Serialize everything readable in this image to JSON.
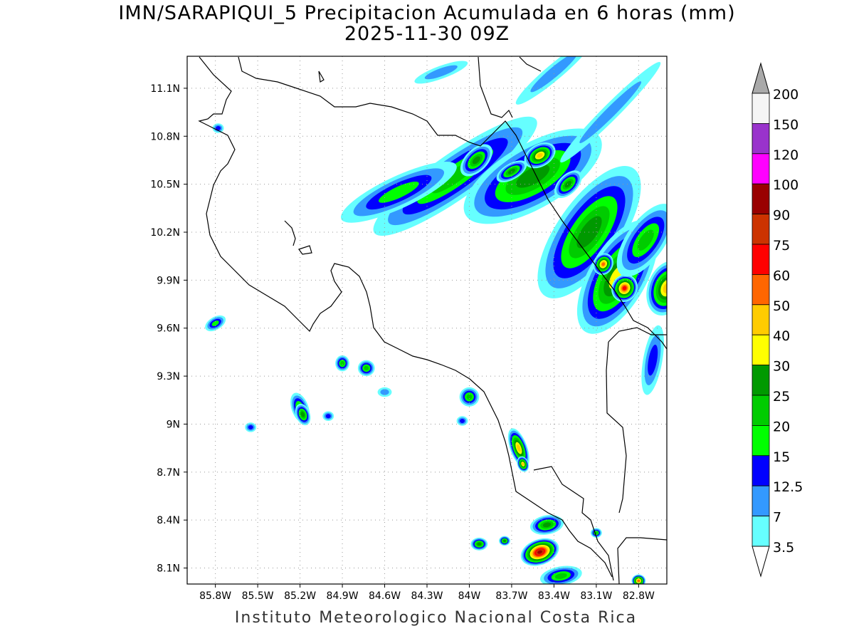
{
  "title": "IMN/SARAPIQUI_5 Precipitacion Acumulada en 6 horas (mm)",
  "subtitle": "2025-11-30 09Z",
  "credit": "Instituto Meteorologico Nacional Costa Rica",
  "map": {
    "lon_range": [
      -86.0,
      -82.6
    ],
    "lat_range": [
      8.0,
      11.3
    ],
    "lon_ticks": [
      {
        "value": -85.8,
        "label": "85.8W"
      },
      {
        "value": -85.5,
        "label": "85.5W"
      },
      {
        "value": -85.2,
        "label": "85.2W"
      },
      {
        "value": -84.9,
        "label": "84.9W"
      },
      {
        "value": -84.6,
        "label": "84.6W"
      },
      {
        "value": -84.3,
        "label": "84.3W"
      },
      {
        "value": -84.0,
        "label": "84W"
      },
      {
        "value": -83.7,
        "label": "83.7W"
      },
      {
        "value": -83.4,
        "label": "83.4W"
      },
      {
        "value": -83.1,
        "label": "83.1W"
      },
      {
        "value": -82.8,
        "label": "82.8W"
      }
    ],
    "lat_ticks": [
      {
        "value": 11.1,
        "label": "11.1N"
      },
      {
        "value": 10.8,
        "label": "10.8N"
      },
      {
        "value": 10.5,
        "label": "10.5N"
      },
      {
        "value": 10.2,
        "label": "10.2N"
      },
      {
        "value": 9.9,
        "label": "9.9N"
      },
      {
        "value": 9.6,
        "label": "9.6N"
      },
      {
        "value": 9.3,
        "label": "9.3N"
      },
      {
        "value": 9.0,
        "label": "9N"
      },
      {
        "value": 8.7,
        "label": "8.7N"
      },
      {
        "value": 8.4,
        "label": "8.4N"
      },
      {
        "value": 8.1,
        "label": "8.1N"
      }
    ],
    "grid": "dotted"
  },
  "colorbar": {
    "levels": [
      {
        "label": "200",
        "color": "#a9a9a9"
      },
      {
        "label": "150",
        "color": "#f5f5f5"
      },
      {
        "label": "120",
        "color": "#9933cc"
      },
      {
        "label": "100",
        "color": "#ff00ff"
      },
      {
        "label": "90",
        "color": "#990000"
      },
      {
        "label": "75",
        "color": "#cc3300"
      },
      {
        "label": "60",
        "color": "#ff0000"
      },
      {
        "label": "50",
        "color": "#ff6600"
      },
      {
        "label": "40",
        "color": "#ffcc00"
      },
      {
        "label": "30",
        "color": "#ffff00"
      },
      {
        "label": "25",
        "color": "#009900"
      },
      {
        "label": "20",
        "color": "#00cc00"
      },
      {
        "label": "15",
        "color": "#00ff00"
      },
      {
        "label": "12.5",
        "color": "#0000ff"
      },
      {
        "label": "7",
        "color": "#3399ff"
      },
      {
        "label": "3.5",
        "color": "#66ffff"
      }
    ],
    "top_arrow_color": "#a9a9a9",
    "bottom_arrow_color": "#ffffff"
  },
  "precip_cells": [
    {
      "lon": -84.1,
      "lat": 10.55,
      "w": 0.7,
      "h": 0.14,
      "rot": -35,
      "max": 4
    },
    {
      "lon": -84.5,
      "lat": 10.45,
      "w": 0.45,
      "h": 0.1,
      "rot": -25,
      "max": 3
    },
    {
      "lon": -83.55,
      "lat": 10.55,
      "w": 0.55,
      "h": 0.2,
      "rot": -30,
      "max": 5
    },
    {
      "lon": -83.5,
      "lat": 10.68,
      "w": 0.12,
      "h": 0.07,
      "rot": -30,
      "max": 7
    },
    {
      "lon": -83.95,
      "lat": 10.65,
      "w": 0.14,
      "h": 0.07,
      "rot": -45,
      "max": 5
    },
    {
      "lon": -83.7,
      "lat": 10.58,
      "w": 0.12,
      "h": 0.05,
      "rot": -30,
      "max": 5
    },
    {
      "lon": -83.3,
      "lat": 10.5,
      "w": 0.12,
      "h": 0.06,
      "rot": -45,
      "max": 5
    },
    {
      "lon": -83.15,
      "lat": 10.2,
      "w": 0.55,
      "h": 0.2,
      "rot": -55,
      "max": 5
    },
    {
      "lon": -82.95,
      "lat": 9.92,
      "w": 0.45,
      "h": 0.18,
      "rot": -60,
      "max": 6
    },
    {
      "lon": -82.9,
      "lat": 9.85,
      "w": 0.1,
      "h": 0.08,
      "rot": -60,
      "max": 9
    },
    {
      "lon": -83.05,
      "lat": 10.0,
      "w": 0.08,
      "h": 0.06,
      "rot": -60,
      "max": 8
    },
    {
      "lon": -82.75,
      "lat": 10.15,
      "w": 0.3,
      "h": 0.12,
      "rot": -55,
      "max": 4
    },
    {
      "lon": -82.6,
      "lat": 9.85,
      "w": 0.2,
      "h": 0.12,
      "rot": -70,
      "max": 7
    },
    {
      "lon": -83.0,
      "lat": 10.95,
      "w": 0.5,
      "h": 0.05,
      "rot": -45,
      "max": 1
    },
    {
      "lon": -83.4,
      "lat": 11.2,
      "w": 0.35,
      "h": 0.05,
      "rot": -40,
      "max": 1
    },
    {
      "lon": -84.2,
      "lat": 11.2,
      "w": 0.2,
      "h": 0.04,
      "rot": -20,
      "max": 1
    },
    {
      "lon": -82.7,
      "lat": 9.4,
      "w": 0.25,
      "h": 0.06,
      "rot": -80,
      "max": 2
    },
    {
      "lon": -85.8,
      "lat": 9.63,
      "w": 0.08,
      "h": 0.04,
      "rot": -30,
      "max": 3
    },
    {
      "lon": -85.2,
      "lat": 9.1,
      "w": 0.06,
      "h": 0.1,
      "rot": -20,
      "max": 4
    },
    {
      "lon": -85.18,
      "lat": 9.06,
      "w": 0.05,
      "h": 0.07,
      "rot": -20,
      "max": 5
    },
    {
      "lon": -84.9,
      "lat": 9.38,
      "w": 0.05,
      "h": 0.05,
      "rot": 0,
      "max": 4
    },
    {
      "lon": -84.73,
      "lat": 9.35,
      "w": 0.06,
      "h": 0.05,
      "rot": 0,
      "max": 4
    },
    {
      "lon": -84.0,
      "lat": 9.17,
      "w": 0.07,
      "h": 0.06,
      "rot": 0,
      "max": 4
    },
    {
      "lon": -83.65,
      "lat": 8.85,
      "w": 0.06,
      "h": 0.13,
      "rot": -20,
      "max": 7
    },
    {
      "lon": -83.62,
      "lat": 8.75,
      "w": 0.04,
      "h": 0.05,
      "rot": -20,
      "max": 7
    },
    {
      "lon": -83.5,
      "lat": 8.2,
      "w": 0.14,
      "h": 0.08,
      "rot": -20,
      "max": 11
    },
    {
      "lon": -83.45,
      "lat": 8.37,
      "w": 0.12,
      "h": 0.06,
      "rot": -10,
      "max": 5
    },
    {
      "lon": -83.93,
      "lat": 8.25,
      "w": 0.06,
      "h": 0.04,
      "rot": 0,
      "max": 5
    },
    {
      "lon": -83.75,
      "lat": 8.27,
      "w": 0.04,
      "h": 0.03,
      "rot": 0,
      "max": 5
    },
    {
      "lon": -83.35,
      "lat": 8.05,
      "w": 0.15,
      "h": 0.06,
      "rot": -10,
      "max": 4
    },
    {
      "lon": -83.1,
      "lat": 8.32,
      "w": 0.04,
      "h": 0.03,
      "rot": 0,
      "max": 4
    },
    {
      "lon": -82.8,
      "lat": 8.02,
      "w": 0.05,
      "h": 0.04,
      "rot": 0,
      "max": 8
    },
    {
      "lon": -84.6,
      "lat": 9.2,
      "w": 0.05,
      "h": 0.03,
      "rot": 0,
      "max": 1
    },
    {
      "lon": -85.55,
      "lat": 8.98,
      "w": 0.04,
      "h": 0.03,
      "rot": 0,
      "max": 2
    },
    {
      "lon": -85.0,
      "lat": 9.05,
      "w": 0.04,
      "h": 0.03,
      "rot": 0,
      "max": 2
    },
    {
      "lon": -85.78,
      "lat": 10.85,
      "w": 0.04,
      "h": 0.03,
      "rot": 0,
      "max": 2
    },
    {
      "lon": -84.05,
      "lat": 9.02,
      "w": 0.04,
      "h": 0.03,
      "rot": 0,
      "max": 2
    }
  ]
}
